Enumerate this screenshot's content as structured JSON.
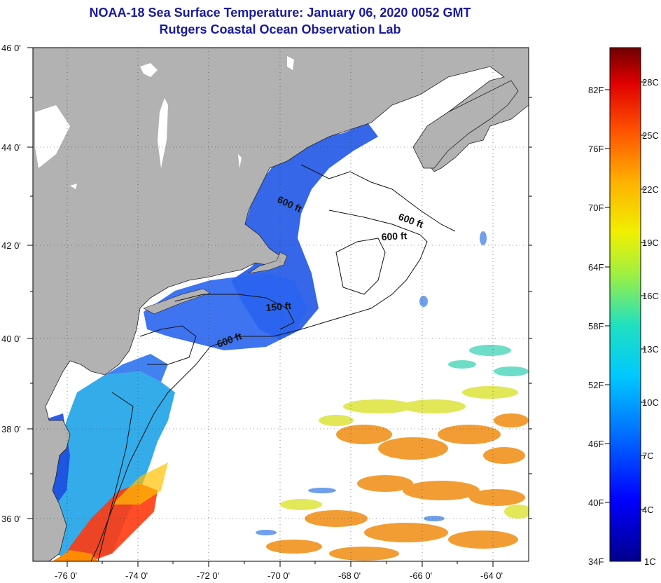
{
  "title": "NOAA-18 Sea Surface Temperature:  January 06, 2020 0052 GMT",
  "subtitle": "Rutgers Coastal Ocean Observation Lab",
  "map": {
    "lon_range": [
      -77,
      -63
    ],
    "lat_range": [
      35,
      46
    ],
    "x_ticks": [
      "-76 0'",
      "-74 0'",
      "-72 0'",
      "-70 0'",
      "-68 0'",
      "-66 0'",
      "-64 0'"
    ],
    "y_ticks": [
      "46 0'",
      "44 0'",
      "42 0'",
      "40 0'",
      "38 0'",
      "36 0'"
    ],
    "contour_labels": [
      "600 ft",
      "600 ft",
      "600 ft",
      "150 ft",
      "600 ft"
    ],
    "land_color": "#b2b2b2",
    "no_data_color": "#ffffff"
  },
  "colorbar": {
    "fahrenheit": [
      "82F",
      "76F",
      "70F",
      "64F",
      "58F",
      "52F",
      "46F",
      "40F",
      "34F"
    ],
    "celsius": [
      "28C",
      "25C",
      "22C",
      "19C",
      "16C",
      "13C",
      "10C",
      "7C",
      "4C",
      "1C"
    ]
  }
}
